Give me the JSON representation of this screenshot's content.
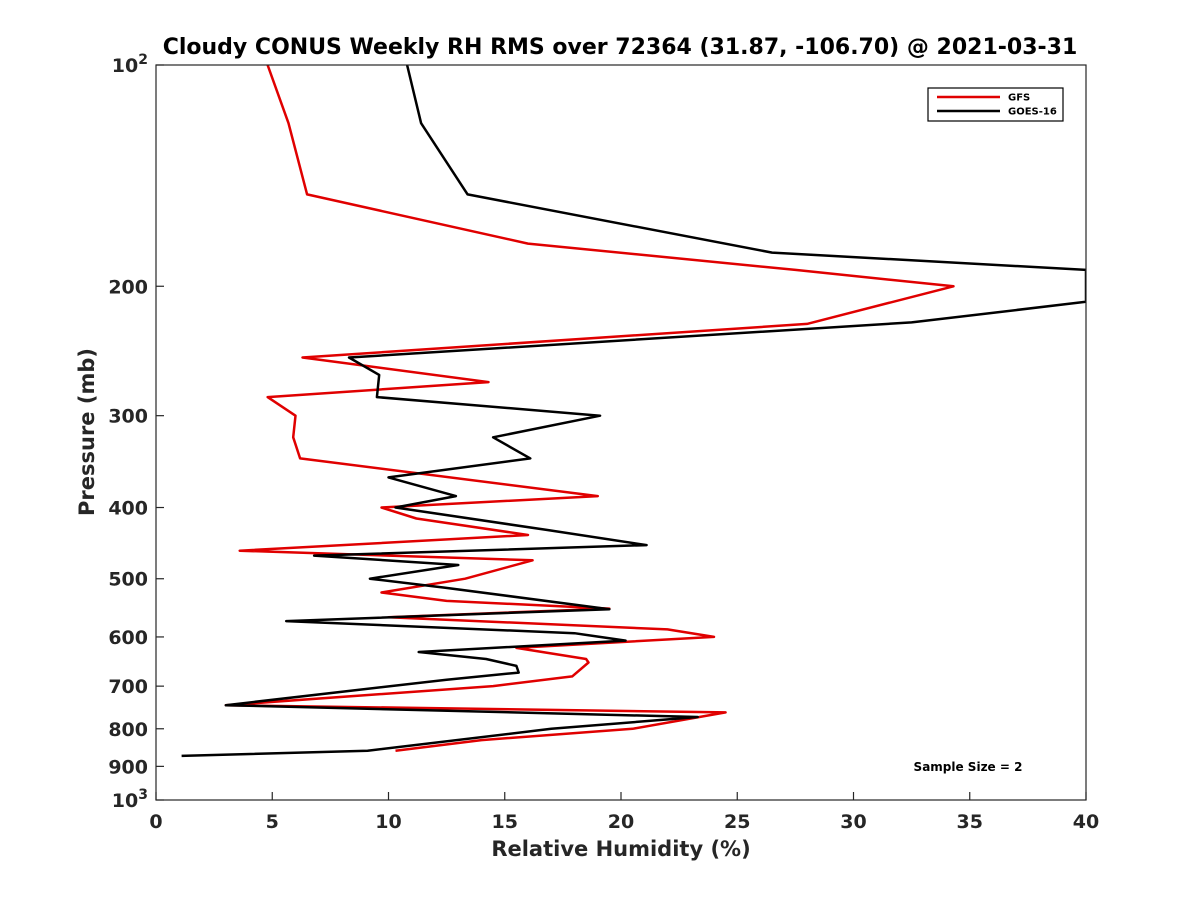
{
  "chart_data": {
    "type": "line",
    "title": "Cloudy CONUS Weekly RH RMS over 72364 (31.87, -106.70) @ 2021-03-31",
    "xlabel": "Relative Humidity (%)",
    "ylabel": "Pressure (mb)",
    "xlim": [
      0,
      40
    ],
    "ylim": [
      1000,
      100
    ],
    "y_scale": "log",
    "y_reversed": true,
    "x_ticks": [
      "0",
      "5",
      "10",
      "15",
      "20",
      "25",
      "30",
      "35",
      "40"
    ],
    "y_ticks": [
      {
        "value": 100,
        "base": "10",
        "exp": "2"
      },
      {
        "value": 200,
        "label": "200"
      },
      {
        "value": 300,
        "label": "300"
      },
      {
        "value": 400,
        "label": "400"
      },
      {
        "value": 500,
        "label": "500"
      },
      {
        "value": 600,
        "label": "600"
      },
      {
        "value": 700,
        "label": "700"
      },
      {
        "value": 800,
        "label": "800"
      },
      {
        "value": 900,
        "label": "900"
      },
      {
        "value": 1000,
        "base": "10",
        "exp": "3"
      }
    ],
    "legend_position": "top-right",
    "grid": false,
    "annotation": "Sample Size = 2",
    "series": [
      {
        "name": "GFS",
        "color": "#e00000",
        "points": [
          [
            4.8,
            100
          ],
          [
            5.7,
            120
          ],
          [
            6.5,
            150
          ],
          [
            16.0,
            175
          ],
          [
            27.5,
            190
          ],
          [
            34.3,
            200
          ],
          [
            28.0,
            225
          ],
          [
            6.3,
            250
          ],
          [
            14.3,
            270
          ],
          [
            4.8,
            283
          ],
          [
            6.0,
            300
          ],
          [
            5.9,
            321
          ],
          [
            6.2,
            343
          ],
          [
            19.0,
            386
          ],
          [
            9.7,
            400
          ],
          [
            11.2,
            414
          ],
          [
            16.0,
            436
          ],
          [
            3.6,
            458
          ],
          [
            16.2,
            472
          ],
          [
            13.3,
            500
          ],
          [
            9.7,
            522
          ],
          [
            12.5,
            536
          ],
          [
            19.5,
            549
          ],
          [
            10.0,
            564
          ],
          [
            22.0,
            586
          ],
          [
            24.0,
            600
          ],
          [
            15.5,
            621
          ],
          [
            18.5,
            643
          ],
          [
            18.6,
            650
          ],
          [
            17.9,
            679
          ],
          [
            14.5,
            700
          ],
          [
            3.0,
            743
          ],
          [
            24.5,
            760
          ],
          [
            20.5,
            800
          ],
          [
            14.0,
            829
          ],
          [
            10.3,
            857
          ]
        ]
      },
      {
        "name": "GOES-16",
        "color": "#000000",
        "points": [
          [
            10.8,
            100
          ],
          [
            11.4,
            120
          ],
          [
            13.4,
            150
          ],
          [
            26.5,
            180
          ],
          [
            40.0,
            190
          ],
          [
            40.0,
            210
          ],
          [
            32.5,
            224
          ],
          [
            8.3,
            250
          ],
          [
            9.6,
            264
          ],
          [
            9.5,
            283
          ],
          [
            19.1,
            300
          ],
          [
            14.5,
            321
          ],
          [
            16.1,
            343
          ],
          [
            10.0,
            364
          ],
          [
            12.9,
            386
          ],
          [
            10.3,
            400
          ],
          [
            16.8,
            429
          ],
          [
            21.1,
            450
          ],
          [
            6.8,
            465
          ],
          [
            13.0,
            479
          ],
          [
            9.2,
            500
          ],
          [
            12.4,
            514
          ],
          [
            19.5,
            550
          ],
          [
            5.6,
            571
          ],
          [
            18.0,
            593
          ],
          [
            20.2,
            607
          ],
          [
            11.3,
            629
          ],
          [
            14.2,
            643
          ],
          [
            15.5,
            657
          ],
          [
            15.6,
            671
          ],
          [
            12.5,
            686
          ],
          [
            3.0,
            743
          ],
          [
            23.3,
            771
          ],
          [
            17.0,
            800
          ],
          [
            9.1,
            857
          ],
          [
            1.1,
            871
          ]
        ]
      }
    ]
  }
}
